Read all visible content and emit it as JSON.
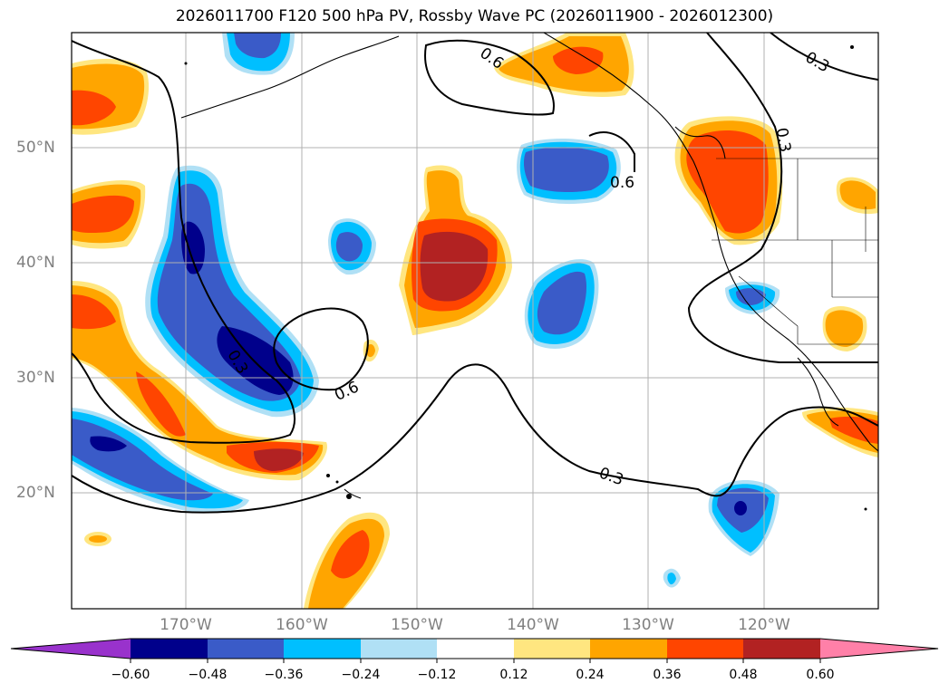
{
  "title": "2026011700 F120 500 hPa PV, Rossby Wave PC (2026011900 - 2026012300)",
  "lat_labels": [
    "50°N",
    "40°N",
    "30°N",
    "20°N"
  ],
  "lon_labels": [
    "170°W",
    "160°W",
    "150°W",
    "140°W",
    "130°W",
    "120°W"
  ],
  "contour_labels": [
    "0.6",
    "0.3",
    "0.6",
    "0.3",
    "0.6",
    "0.3",
    "0.3"
  ],
  "colorbar": {
    "ticks": [
      "−0.60",
      "−0.48",
      "−0.36",
      "−0.24",
      "−0.12",
      "0.12",
      "0.24",
      "0.36",
      "0.48",
      "0.60"
    ],
    "colors": [
      "#9932cc",
      "#00008b",
      "#3a5bc8",
      "#00bfff",
      "#b0e0f5",
      "#ffffff",
      "#ffe680",
      "#ffa500",
      "#ff4500",
      "#b22222",
      "#ff80a8"
    ]
  }
}
